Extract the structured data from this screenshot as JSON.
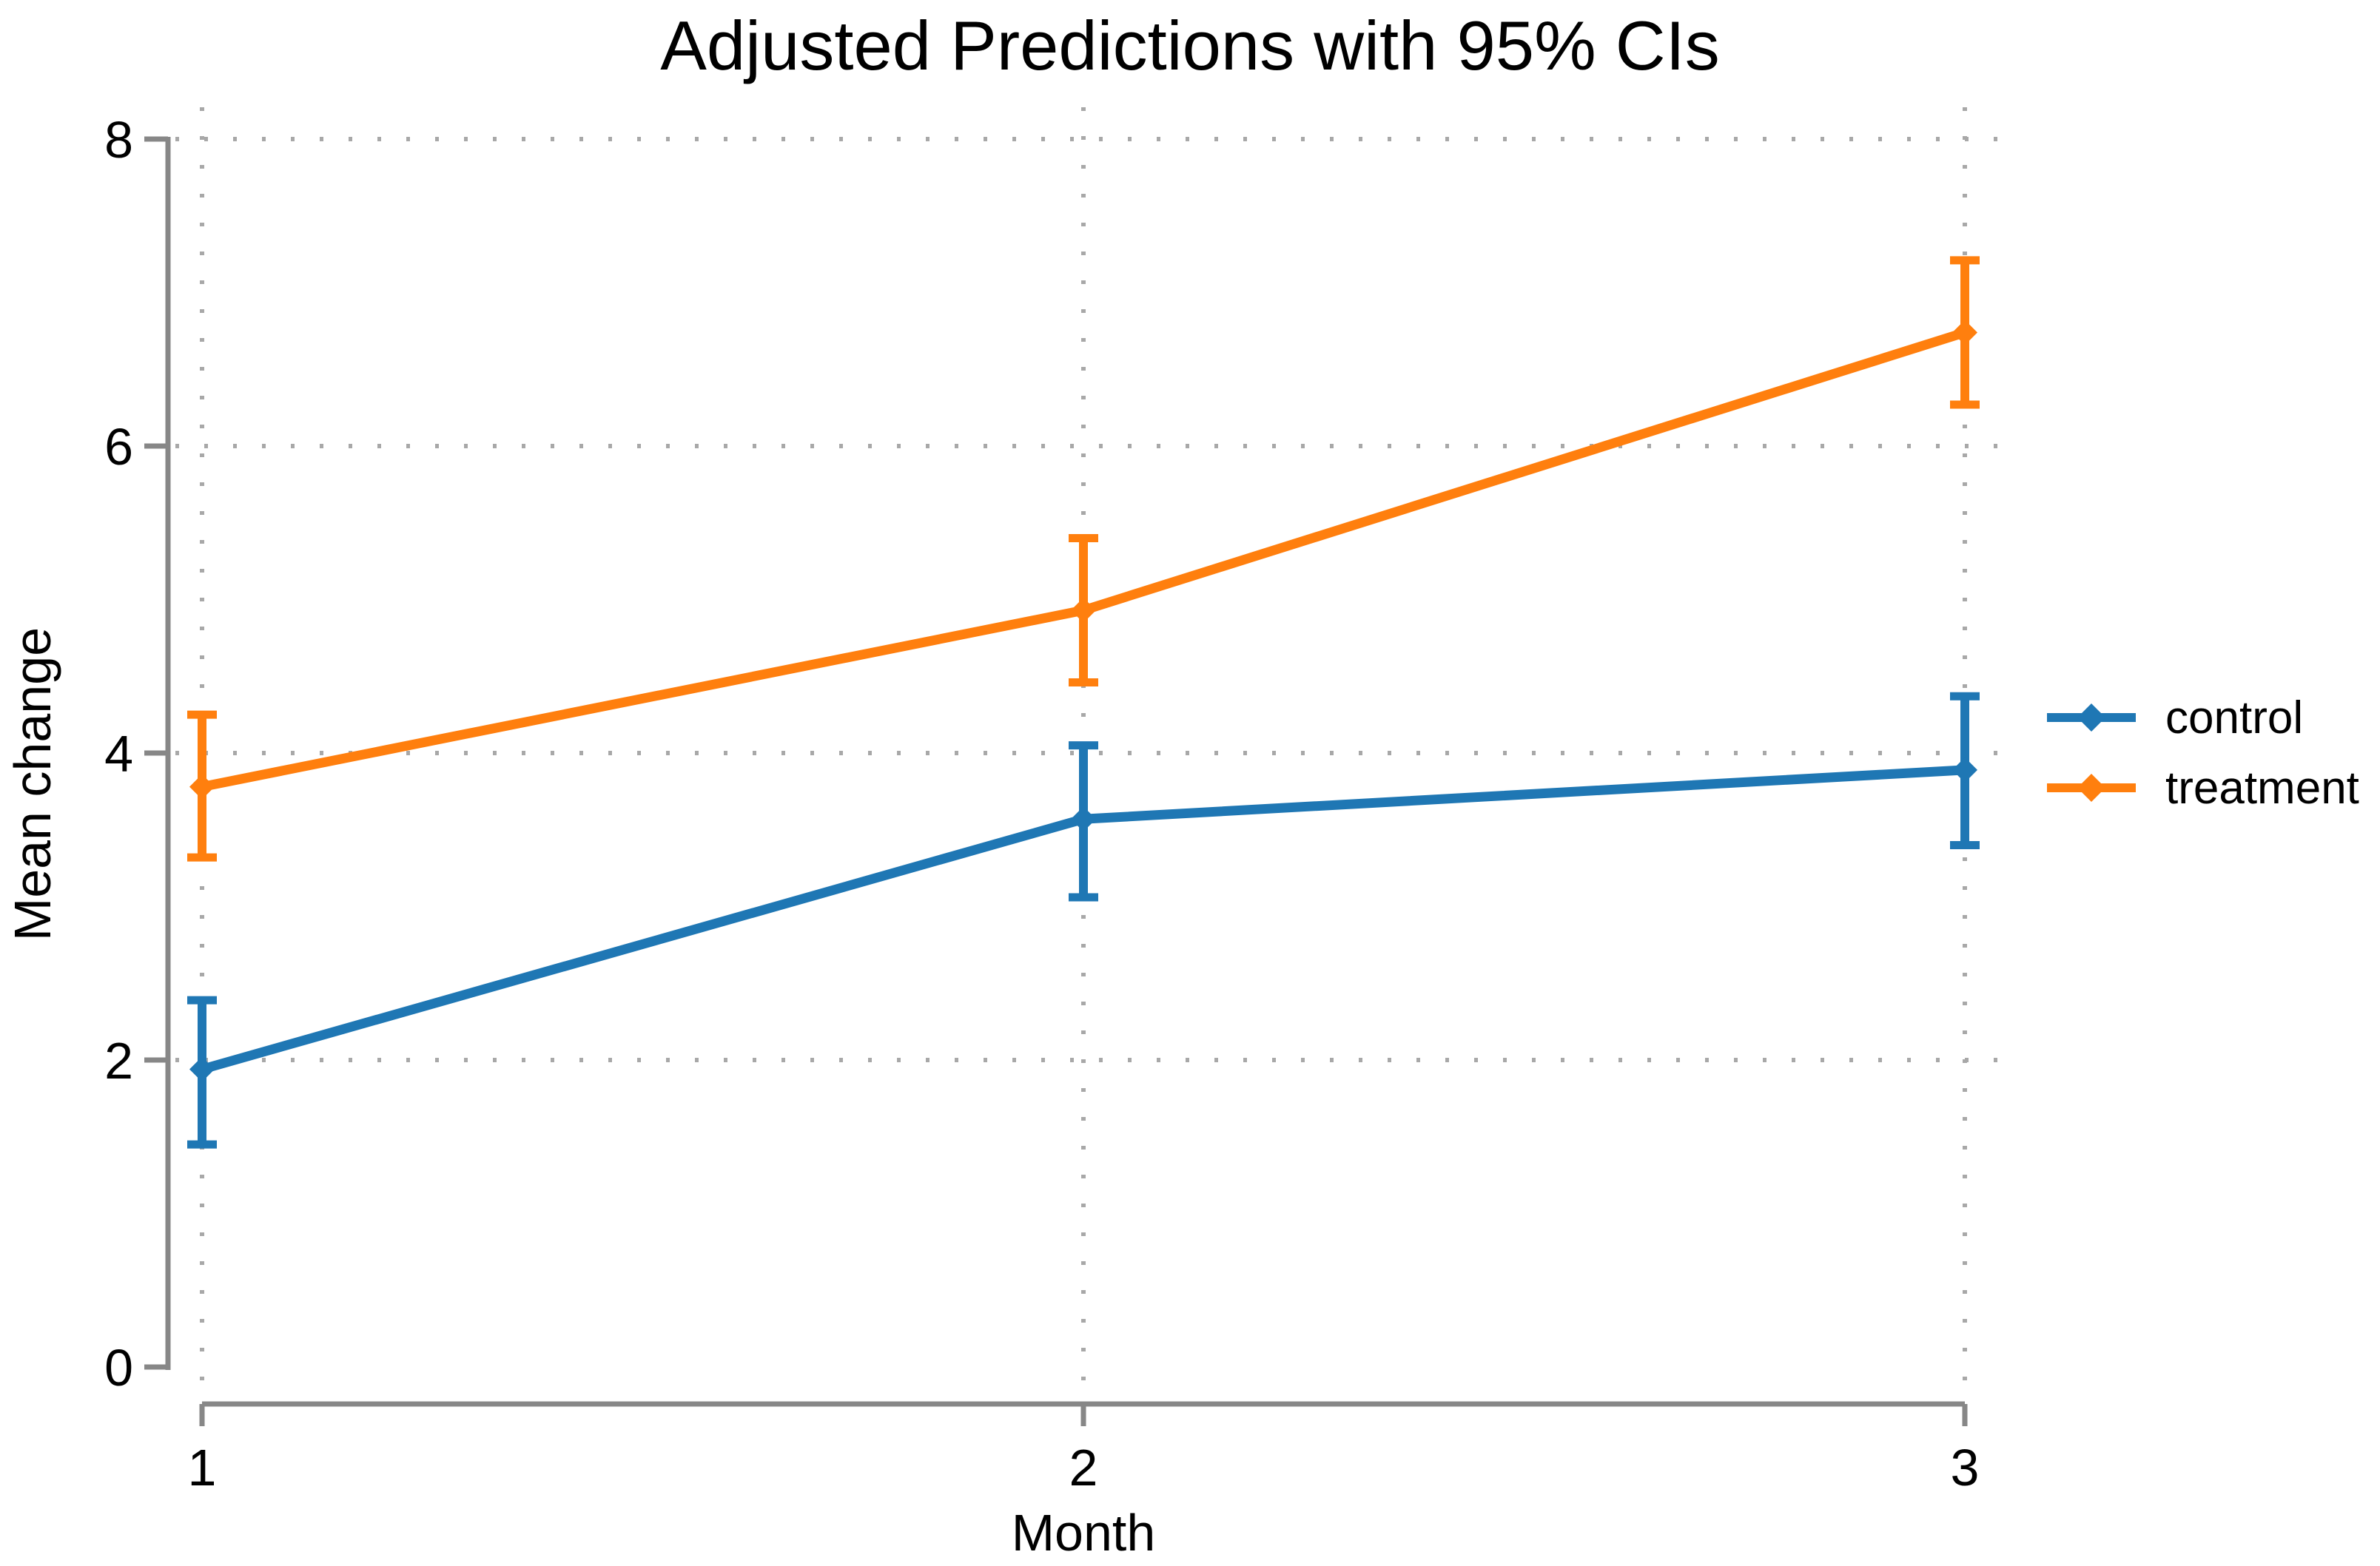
{
  "figure": {
    "background": "#ffffff"
  },
  "chart_data": {
    "type": "line",
    "title": "Adjusted Predictions with 95% CIs",
    "xlabel": "Month",
    "ylabel": "Mean change",
    "x": [
      1,
      2,
      3
    ],
    "x_tick_labels": [
      "1",
      "2",
      "3"
    ],
    "y_ticks": [
      0,
      2,
      4,
      6,
      8
    ],
    "xlim": [
      1,
      3
    ],
    "ylim": [
      0,
      8
    ],
    "grid": "dotted",
    "legend_position": "right-outside",
    "error_bars": "95% CI",
    "series": [
      {
        "name": "control",
        "color": "#1f77b4",
        "values": [
          1.94,
          3.57,
          3.89
        ],
        "ci_low": [
          1.45,
          3.06,
          3.4
        ],
        "ci_high": [
          2.39,
          4.05,
          4.37
        ]
      },
      {
        "name": "treatment",
        "color": "#ff7f0e",
        "values": [
          3.78,
          4.93,
          6.74
        ],
        "ci_low": [
          3.32,
          4.46,
          6.27
        ],
        "ci_high": [
          4.25,
          5.4,
          7.21
        ]
      }
    ]
  },
  "colors": {
    "axis": "#878787",
    "gridline": "#a8a8a8",
    "text": "#000000"
  }
}
